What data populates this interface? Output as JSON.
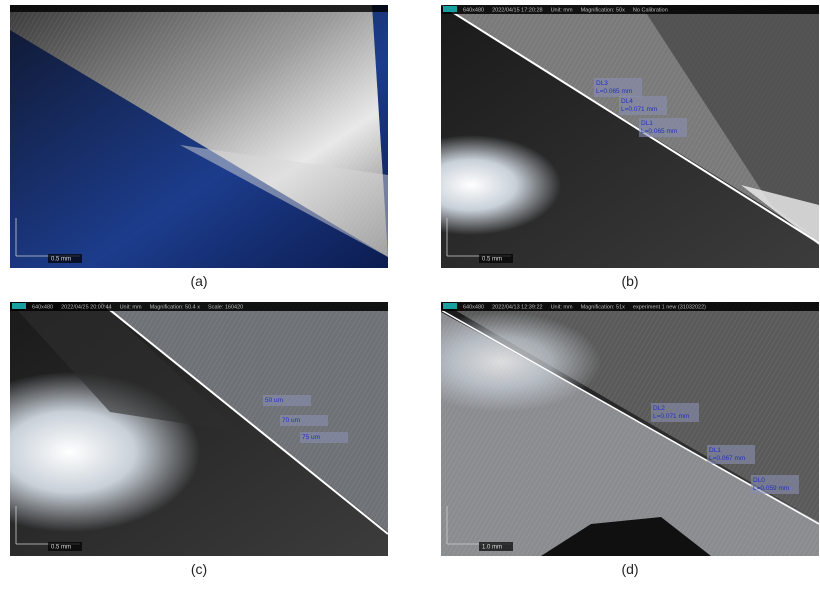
{
  "figure": {
    "panels": [
      {
        "caption": "(a)",
        "scale": "0.5 mm"
      },
      {
        "caption": "(b)",
        "scale": "0.5 mm",
        "header": [
          "640x480",
          "2022/04/15 17:20:28",
          "Unit: mm",
          "Magnification: 50x",
          "No Calibration"
        ],
        "annotations": [
          {
            "lines": [
              "DL3",
              "L=0.065 mm"
            ]
          },
          {
            "lines": [
              "DL4",
              "L=0.071 mm"
            ]
          },
          {
            "lines": [
              "DL1",
              "L=0.065 mm"
            ]
          }
        ]
      },
      {
        "caption": "(c)",
        "scale": "0.5 mm",
        "header": [
          "640x480",
          "2022/04/25 20:00:44",
          "Unit: mm",
          "Magnification: 50.4 x",
          "Scale: 160420"
        ],
        "annotations": [
          {
            "lines": [
              "50 um"
            ]
          },
          {
            "lines": [
              "70 um"
            ]
          },
          {
            "lines": [
              "75 um"
            ]
          }
        ]
      },
      {
        "caption": "(d)",
        "scale": "1.0 mm",
        "header": [
          "640x480",
          "2022/04/13 12:39:22",
          "Unit: mm",
          "Magnification: 51x",
          "experiment 1 new (31032022)"
        ],
        "annotations": [
          {
            "lines": [
              "DL2",
              "L=0.071 mm"
            ]
          },
          {
            "lines": [
              "DL1",
              "L=0.067 mm"
            ]
          },
          {
            "lines": [
              "DL0",
              "L=0.059 mm"
            ]
          }
        ]
      }
    ]
  }
}
